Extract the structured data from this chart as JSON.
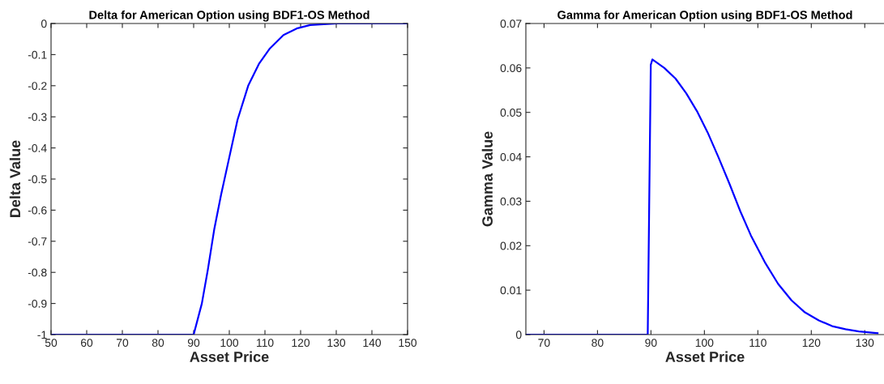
{
  "chart_data": [
    {
      "type": "line",
      "title": "Delta for American Option using BDF1-OS Method",
      "xlabel": "Asset Price",
      "ylabel": "Delta Value",
      "x": [
        50,
        90,
        92.3,
        94.0,
        95.8,
        97.7,
        100,
        102.3,
        105.3,
        108.3,
        111.4,
        115.2,
        118.9,
        122.7,
        126.5,
        130.3,
        150
      ],
      "series": [
        {
          "color": "#0000ff",
          "values": [
            -1,
            -1,
            -0.9,
            -0.79,
            -0.66,
            -0.55,
            -0.43,
            -0.31,
            -0.2,
            -0.13,
            -0.08,
            -0.037,
            -0.016,
            -0.005,
            -0.002,
            0,
            0
          ]
        }
      ],
      "xlim": [
        50,
        150
      ],
      "xticks": [
        50,
        60,
        70,
        80,
        90,
        100,
        110,
        120,
        130,
        140,
        150
      ],
      "ylim": [
        -1,
        0
      ],
      "yticks": [
        -1,
        -0.9,
        -0.8,
        -0.7,
        -0.6,
        -0.5,
        -0.4,
        -0.3,
        -0.2,
        -0.1,
        0
      ],
      "grid": false,
      "legend": false,
      "line_style": "solid",
      "marker": "none"
    },
    {
      "type": "line",
      "title": "Gamma for American Option using BDF1-OS Method",
      "xlabel": "Asset Price",
      "ylabel": "Gamma Value",
      "x": [
        66.6,
        89.4,
        89.97,
        90.27,
        92.5,
        94.6,
        96.6,
        98.6,
        100.6,
        102.6,
        104.7,
        106.7,
        108.7,
        111.3,
        113.8,
        116.3,
        118.8,
        121.4,
        123.9,
        126.4,
        128.9,
        132.4
      ],
      "series": [
        {
          "color": "#0000ff",
          "values": [
            0,
            0,
            0.0607,
            0.0619,
            0.06,
            0.0576,
            0.0543,
            0.0503,
            0.0455,
            0.04,
            0.0339,
            0.0278,
            0.0223,
            0.0163,
            0.0114,
            0.0077,
            0.005,
            0.0032,
            0.0019,
            0.0012,
            0.0007,
            0.0003
          ]
        }
      ],
      "xlim": [
        66.6,
        133.6
      ],
      "xticks": [
        70,
        80,
        90,
        100,
        110,
        120,
        130
      ],
      "ylim": [
        0,
        0.07
      ],
      "yticks": [
        0,
        0.01,
        0.02,
        0.03,
        0.04,
        0.05,
        0.06,
        0.07
      ],
      "grid": false,
      "legend": false,
      "line_style": "solid",
      "marker": "none"
    }
  ]
}
